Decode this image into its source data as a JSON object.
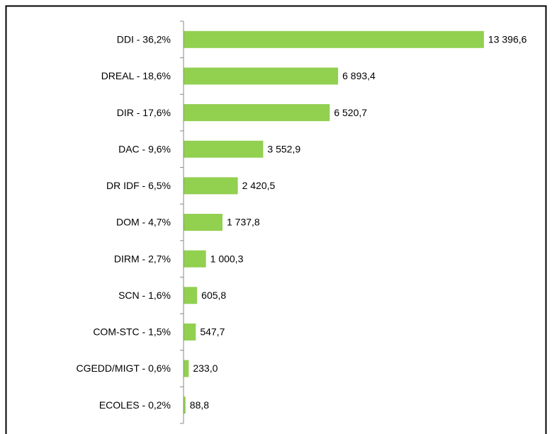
{
  "chart_data": {
    "type": "hbar",
    "categories": [
      "DDI - 36,2%",
      "DREAL - 18,6%",
      "DIR - 17,6%",
      "DAC - 9,6%",
      "DR IDF - 6,5%",
      "DOM - 4,7%",
      "DIRM - 2,7%",
      "SCN - 1,6%",
      "COM-STC - 1,5%",
      "CGEDD/MIGT - 0,6%",
      "ECOLES - 0,2%"
    ],
    "values": [
      13396.6,
      6893.4,
      6520.7,
      3552.9,
      2420.5,
      1737.8,
      1000.3,
      605.8,
      547.7,
      233.0,
      88.8
    ],
    "value_labels": [
      "13 396,6",
      "6 893,4",
      "6 520,7",
      "3 552,9",
      "2 420,5",
      "1 737,8",
      "1 000,3",
      "605,8",
      "547,7",
      "233,0",
      "88,8"
    ],
    "color": "#92d050",
    "xlim": [
      0,
      14000
    ]
  }
}
